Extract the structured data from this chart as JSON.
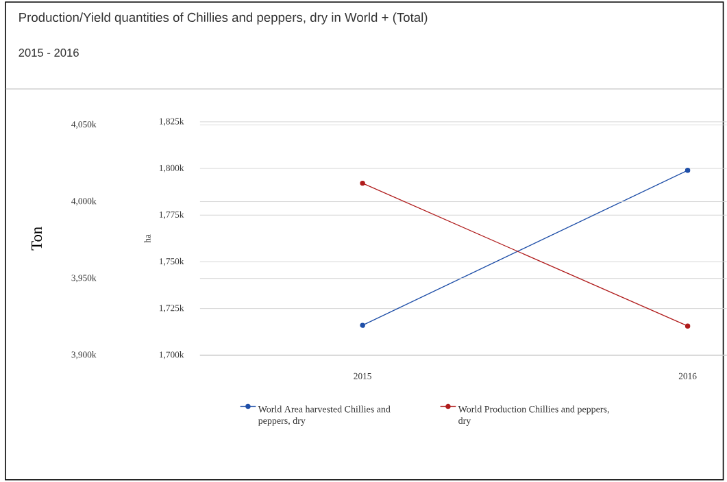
{
  "chart_data": {
    "type": "line",
    "title": "Production/Yield quantities of Chillies and peppers, dry in World + (Total)",
    "subtitle": "2015 - 2016",
    "ylabel": "ha",
    "y2label": "Ton",
    "categories": [
      "2015",
      "2016"
    ],
    "series": [
      {
        "name": "World Area harvested Chillies and peppers, dry",
        "color": "#1f4fa8",
        "values": [
          1716,
          1799
        ]
      },
      {
        "name": "World Production Chillies and peppers, dry",
        "color": "#b01c1c",
        "values": [
          4012,
          3919
        ],
        "axis": "y2"
      }
    ],
    "ylim": [
      1700,
      1825
    ],
    "yticks": [
      {
        "value": 1700,
        "label": "1,700k"
      },
      {
        "value": 1725,
        "label": "1,725k"
      },
      {
        "value": 1750,
        "label": "1,750k"
      },
      {
        "value": 1775,
        "label": "1,775k"
      },
      {
        "value": 1800,
        "label": "1,800k"
      },
      {
        "value": 1825,
        "label": "1,825k"
      }
    ],
    "y2lim": [
      3900,
      4052
    ],
    "y2ticks": [
      {
        "value": 3900,
        "label": "3,900k"
      },
      {
        "value": 3950,
        "label": "3,950k"
      },
      {
        "value": 4000,
        "label": "4,000k"
      },
      {
        "value": 4050,
        "label": "4,050k"
      }
    ],
    "grid": "y",
    "legend": "bottom",
    "marker": "circle",
    "line_style": "solid"
  }
}
